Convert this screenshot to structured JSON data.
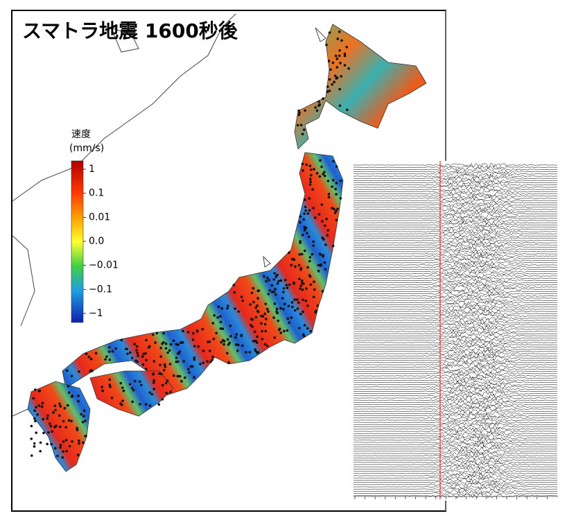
{
  "header": {
    "title": "スマトラ地震 1600秒後"
  },
  "legend": {
    "title": "速度",
    "unit": "(mm/s)",
    "labels": [
      "1",
      "0.1",
      "0.01",
      "0.0",
      "−0.01",
      "−0.1",
      "−1"
    ]
  }
}
